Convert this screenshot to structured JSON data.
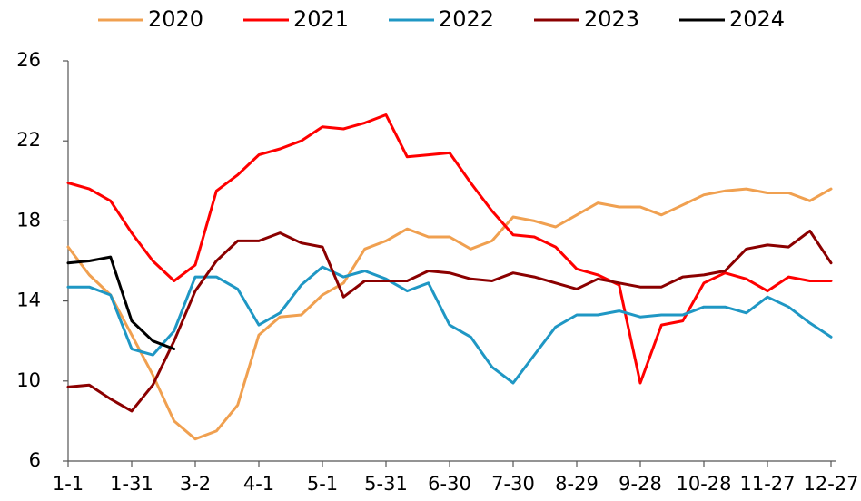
{
  "chart_data": {
    "type": "line",
    "categories": [
      "1-1",
      null,
      null,
      "1-31",
      null,
      null,
      "3-2",
      null,
      null,
      "4-1",
      null,
      null,
      "5-1",
      null,
      null,
      "5-31",
      null,
      null,
      "6-30",
      null,
      null,
      "7-30",
      null,
      null,
      "8-29",
      null,
      null,
      "9-28",
      null,
      null,
      "10-28",
      null,
      null,
      "11-27",
      null,
      null,
      "12-27"
    ],
    "ylim": [
      6,
      26
    ],
    "yticks": [
      6,
      10,
      14,
      18,
      22,
      26
    ],
    "legend": "top",
    "series": [
      {
        "name": "2020",
        "color": "#f0a050",
        "values": [
          16.7,
          15.3,
          14.3,
          12.3,
          10.3,
          8.0,
          7.1,
          7.5,
          8.8,
          12.3,
          13.2,
          13.3,
          14.3,
          14.9,
          16.6,
          17.0,
          17.6,
          17.2,
          17.2,
          16.6,
          17.0,
          18.2,
          18.0,
          17.7,
          18.3,
          18.9,
          18.7,
          18.7,
          18.3,
          18.8,
          19.3,
          19.5,
          19.6,
          19.4,
          19.4,
          19.0,
          19.6
        ]
      },
      {
        "name": "2021",
        "color": "#ff0000",
        "values": [
          19.9,
          19.6,
          19.0,
          17.4,
          16.0,
          15.0,
          15.8,
          19.5,
          20.3,
          21.3,
          21.6,
          22.0,
          22.7,
          22.6,
          22.9,
          23.3,
          21.2,
          21.3,
          21.4,
          19.9,
          18.5,
          17.3,
          17.2,
          16.7,
          15.6,
          15.3,
          14.8,
          9.9,
          12.8,
          13.0,
          14.9,
          15.4,
          15.1,
          14.5,
          15.2,
          15.0,
          15.0
        ]
      },
      {
        "name": "2022",
        "color": "#1f97c4",
        "values": [
          14.7,
          14.7,
          14.3,
          11.6,
          11.3,
          12.5,
          15.2,
          15.2,
          14.6,
          12.8,
          13.4,
          14.8,
          15.7,
          15.2,
          15.5,
          15.1,
          14.5,
          14.9,
          12.8,
          12.2,
          10.7,
          9.9,
          11.3,
          12.7,
          13.3,
          13.3,
          13.5,
          13.2,
          13.3,
          13.3,
          13.7,
          13.7,
          13.4,
          14.2,
          13.7,
          12.9,
          12.2
        ]
      },
      {
        "name": "2023",
        "color": "#8b0000",
        "values": [
          9.7,
          9.8,
          9.1,
          8.5,
          9.8,
          12.0,
          14.5,
          16.0,
          17.0,
          17.0,
          17.4,
          16.9,
          16.7,
          14.2,
          15.0,
          15.0,
          15.0,
          15.5,
          15.4,
          15.1,
          15.0,
          15.4,
          15.2,
          14.9,
          14.6,
          15.1,
          14.9,
          14.7,
          14.7,
          15.2,
          15.3,
          15.5,
          16.6,
          16.8,
          16.7,
          17.5,
          15.9
        ]
      },
      {
        "name": "2024",
        "color": "#000000",
        "values": [
          15.9,
          16.0,
          16.2,
          13.0,
          12.0,
          11.6,
          null,
          null,
          null,
          null,
          null,
          null,
          null,
          null,
          null,
          null,
          null,
          null,
          null,
          null,
          null,
          null,
          null,
          null,
          null,
          null,
          null,
          null,
          null,
          null,
          null,
          null,
          null,
          null,
          null,
          null,
          null
        ]
      }
    ]
  }
}
